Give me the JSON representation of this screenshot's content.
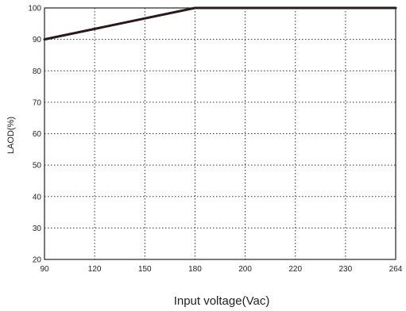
{
  "chart_data": {
    "type": "line",
    "xlabel": "Input voltage(Vac)",
    "ylabel": "LAOD(%)",
    "x_ticks": [
      "90",
      "120",
      "150",
      "180",
      "200",
      "220",
      "230",
      "264"
    ],
    "y_ticks": [
      "20",
      "30",
      "40",
      "50",
      "60",
      "70",
      "80",
      "90",
      "100"
    ],
    "ylim": [
      20,
      100
    ],
    "x_scale": "categorical-evenly-spaced",
    "grid": true,
    "grid_style": "dotted",
    "series": [
      {
        "x": [
          90,
          180,
          264
        ],
        "y": [
          90,
          100,
          100
        ],
        "color": "#2a1a1a"
      }
    ]
  }
}
